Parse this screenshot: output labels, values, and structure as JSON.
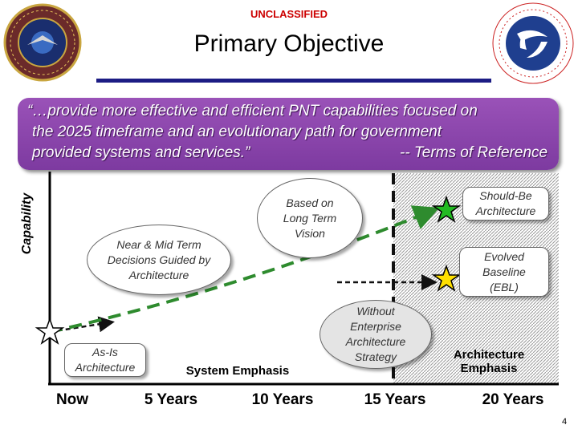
{
  "header": {
    "classification": "UNCLASSIFIED",
    "title": "Primary Objective"
  },
  "logos": {
    "left": "National Security Space Office",
    "right": "Department of Transportation - United States of America"
  },
  "quote": {
    "line1": "“…provide more effective and efficient PNT capabilities focused on",
    "line2": "the 2025 timeframe and an evolutionary path for government",
    "line3": "provided systems and services.”",
    "source": "-- Terms of Reference"
  },
  "axis": {
    "y_label": "Capability",
    "ticks": [
      "Now",
      "5 Years",
      "10 Years",
      "15 Years",
      "20 Years"
    ]
  },
  "callouts": {
    "as_is": "As-Is Architecture",
    "near_mid": "Near & Mid Term Decisions Guided by Architecture",
    "long_term": "Based on Long Term Vision",
    "without": "Without Enterprise Architecture Strategy",
    "should_be": "Should-Be Architecture",
    "evolved": "Evolved Baseline (EBL)"
  },
  "emphasis": {
    "system": "System Emphasis",
    "architecture": "Architecture Emphasis"
  },
  "colors": {
    "title_rule": "#1c1c84",
    "quote_bar": "#8a44ab",
    "classification": "#cc0000",
    "green_path": "#2e8b2e",
    "black_path": "#111111",
    "star_green": "#22bb22",
    "star_yellow": "#ffe000",
    "star_white": "#ffffff"
  },
  "page_number": "4"
}
